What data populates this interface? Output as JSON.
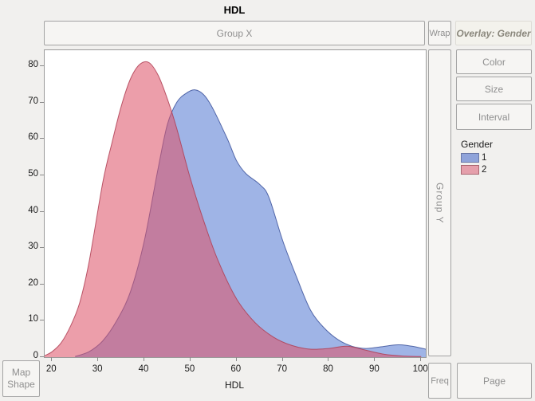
{
  "window": {
    "title": "HDL"
  },
  "drop_zones": {
    "group_x": "Group X",
    "wrap": "Wrap",
    "overlay": "Overlay: Gender",
    "group_y": "Group Y",
    "color": "Color",
    "size": "Size",
    "interval": "Interval",
    "map_shape_line1": "Map",
    "map_shape_line2": "Shape",
    "freq": "Freq",
    "page": "Page"
  },
  "legend": {
    "title": "Gender",
    "items": [
      {
        "label": "1",
        "fill": "#8fa3da",
        "border": "#6b79a8"
      },
      {
        "label": "2",
        "fill": "#e59fab",
        "border": "#ab6873"
      }
    ]
  },
  "chart_data": {
    "type": "area",
    "title": "HDL",
    "xlabel": "HDL",
    "ylabel": "",
    "grid": false,
    "legend_position": "right",
    "xlim": [
      18.4,
      101
    ],
    "ylim": [
      0,
      84.4
    ],
    "x_ticks": [
      20,
      30,
      40,
      50,
      60,
      70,
      80,
      90,
      100
    ],
    "y_ticks": [
      0,
      10,
      20,
      30,
      40,
      50,
      60,
      70,
      80
    ],
    "series": [
      {
        "name": "1",
        "fill": "rgba(80,118,210,0.55)",
        "stroke": "rgba(60,82,155,0.85)",
        "points": [
          [
            25,
            0.2
          ],
          [
            28,
            1.5
          ],
          [
            31,
            4.5
          ],
          [
            34,
            10
          ],
          [
            37,
            18
          ],
          [
            40,
            32
          ],
          [
            43,
            52
          ],
          [
            45,
            64
          ],
          [
            47,
            70
          ],
          [
            49,
            72.5
          ],
          [
            51,
            73.5
          ],
          [
            53,
            72
          ],
          [
            55,
            68
          ],
          [
            58,
            60
          ],
          [
            60,
            54
          ],
          [
            62,
            50.5
          ],
          [
            65,
            47.5
          ],
          [
            67,
            44
          ],
          [
            70,
            32
          ],
          [
            73,
            22
          ],
          [
            76,
            13
          ],
          [
            79,
            8
          ],
          [
            82,
            4.8
          ],
          [
            85,
            3
          ],
          [
            88,
            2.4
          ],
          [
            91,
            2.8
          ],
          [
            95,
            3.4
          ],
          [
            98,
            3
          ],
          [
            101,
            2.2
          ]
        ]
      },
      {
        "name": "2",
        "fill": "rgba(222,82,104,0.56)",
        "stroke": "rgba(175,62,84,0.85)",
        "points": [
          [
            18.4,
            0.4
          ],
          [
            20,
            1.5
          ],
          [
            22,
            4
          ],
          [
            24,
            8.5
          ],
          [
            26,
            15
          ],
          [
            28,
            26
          ],
          [
            31,
            48
          ],
          [
            33,
            59
          ],
          [
            35,
            69
          ],
          [
            37,
            76.5
          ],
          [
            39,
            80.5
          ],
          [
            41,
            81
          ],
          [
            43,
            77.5
          ],
          [
            45,
            71
          ],
          [
            47,
            63
          ],
          [
            50,
            49
          ],
          [
            53,
            37
          ],
          [
            56,
            26.5
          ],
          [
            60,
            16
          ],
          [
            64,
            9.5
          ],
          [
            68,
            5.5
          ],
          [
            72,
            3.2
          ],
          [
            76,
            2.2
          ],
          [
            80,
            2.4
          ],
          [
            84,
            3
          ],
          [
            88,
            1.9
          ],
          [
            92,
            0.8
          ],
          [
            96,
            0.3
          ],
          [
            100,
            0.15
          ]
        ]
      }
    ]
  }
}
